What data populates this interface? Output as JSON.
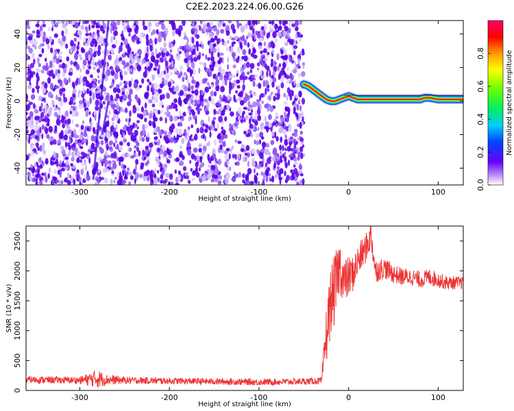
{
  "title": "C2E2.2023.224.06.00.G26",
  "colors": {
    "snr_line": "#ee3333",
    "track": "#ee1111",
    "speckle_dark": "#5a00e0",
    "speckle_light": "#c8b0f5"
  },
  "chart_data": [
    {
      "type": "heatmap",
      "title": "C2E2.2023.224.06.00.G26",
      "xlabel": "Height of straight line (km)",
      "ylabel": "Frequency (Hz)",
      "xlim": [
        -360,
        128
      ],
      "ylim": [
        -50,
        48
      ],
      "xticks": [
        -300,
        -200,
        -100,
        0,
        100
      ],
      "yticks": [
        -40,
        -20,
        0,
        20,
        40
      ],
      "noise_region_x": [
        -360,
        -50
      ],
      "colorbar": {
        "label": "Normalized spectral amplitude",
        "range": [
          0,
          1
        ],
        "ticks": [
          0.0,
          0.2,
          0.4,
          0.6,
          0.8
        ],
        "colormap": "rainbow"
      },
      "ridge": {
        "name": "",
        "x": [
          -50,
          -45,
          -40,
          -35,
          -30,
          -25,
          -20,
          -15,
          -10,
          -5,
          0,
          5,
          10,
          20,
          30,
          40,
          50,
          60,
          70,
          80,
          85,
          90,
          100,
          110,
          120,
          128
        ],
        "y": [
          10,
          9,
          7,
          5,
          3,
          1,
          0,
          0,
          1,
          2,
          3,
          2,
          1,
          1,
          1,
          1,
          1,
          1,
          1,
          1,
          2,
          2,
          1,
          1,
          1,
          1
        ]
      }
    },
    {
      "type": "line",
      "xlabel": "Height of straight line (km)",
      "ylabel": "SNR (10 * v/v)",
      "xlim": [
        -360,
        128
      ],
      "ylim": [
        0,
        2750
      ],
      "xticks": [
        -300,
        -200,
        -100,
        0,
        100
      ],
      "yticks": [
        0,
        500,
        1000,
        1500,
        2000,
        2500
      ],
      "series": [
        {
          "name": "",
          "x": [
            -360,
            -300,
            -280,
            -270,
            -250,
            -200,
            -150,
            -100,
            -50,
            -30,
            -25,
            -20,
            -15,
            -10,
            -5,
            0,
            5,
            10,
            20,
            25,
            30,
            40,
            50,
            60,
            70,
            80,
            90,
            100,
            110,
            120,
            128
          ],
          "y": [
            180,
            170,
            200,
            180,
            170,
            160,
            150,
            140,
            150,
            160,
            900,
            1500,
            1700,
            2100,
            1800,
            1900,
            1950,
            2150,
            2400,
            2600,
            2000,
            2050,
            1950,
            1900,
            1900,
            1850,
            1900,
            1850,
            1800,
            1800,
            1800
          ],
          "amp": [
            60,
            60,
            160,
            90,
            60,
            55,
            55,
            55,
            55,
            60,
            500,
            550,
            600,
            450,
            400,
            350,
            300,
            280,
            250,
            250,
            200,
            180,
            160,
            150,
            140,
            140,
            140,
            130,
            120,
            110,
            110
          ]
        }
      ]
    }
  ]
}
